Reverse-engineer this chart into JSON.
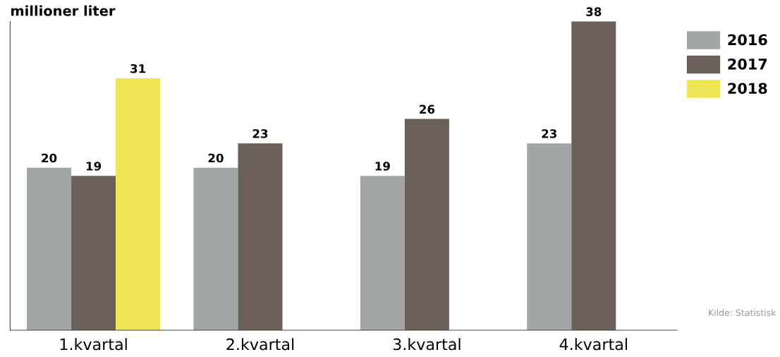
{
  "chart_data": {
    "type": "bar",
    "title": "millioner liter",
    "categories": [
      "1.kvartal",
      "2.kvartal",
      "3.kvartal",
      "4.kvartal"
    ],
    "series": [
      {
        "name": "2016",
        "color": "#a3a6a6",
        "values": [
          20,
          20,
          19,
          23
        ]
      },
      {
        "name": "2017",
        "color": "#6b5f59",
        "values": [
          19,
          23,
          26,
          38
        ]
      },
      {
        "name": "2018",
        "color": "#efe655",
        "values": [
          31,
          null,
          null,
          null
        ]
      }
    ],
    "ylim": [
      0,
      38
    ],
    "tick_labels": "x",
    "data_labels": true,
    "legend": "top right",
    "grid": false,
    "annotations": [
      "Kilde: Statistisk"
    ]
  }
}
